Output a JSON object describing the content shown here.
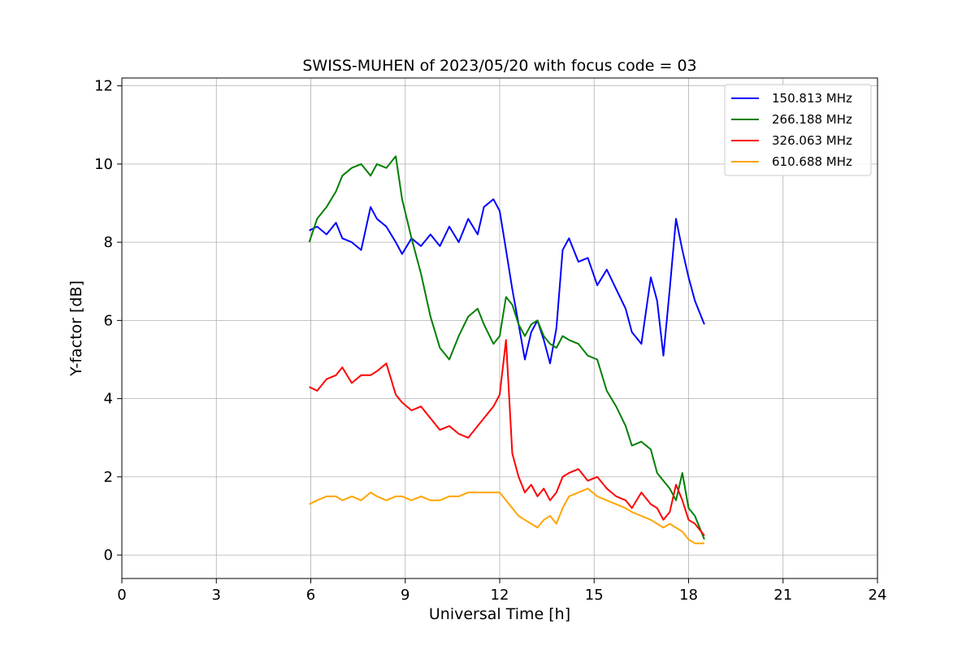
{
  "chart_data": {
    "type": "line",
    "title": "SWISS-MUHEN of 2023/05/20 with focus code = 03",
    "xlabel": "Universal Time [h]",
    "ylabel": "Y-factor [dB]",
    "xlim": [
      0,
      24
    ],
    "ylim": [
      -0.6,
      12.2
    ],
    "xticks": [
      0,
      3,
      6,
      9,
      12,
      15,
      18,
      21,
      24
    ],
    "yticks": [
      0,
      2,
      4,
      6,
      8,
      10,
      12
    ],
    "grid": true,
    "legend_position": "top-right",
    "series": [
      {
        "name": "150.813 MHz",
        "color": "#0000ff",
        "x": [
          5.95,
          6.2,
          6.5,
          6.8,
          7.0,
          7.3,
          7.6,
          7.9,
          8.1,
          8.4,
          8.7,
          8.9,
          9.2,
          9.5,
          9.8,
          10.1,
          10.4,
          10.7,
          11.0,
          11.3,
          11.5,
          11.8,
          12.0,
          12.2,
          12.4,
          12.6,
          12.8,
          13.0,
          13.2,
          13.4,
          13.6,
          13.8,
          14.0,
          14.2,
          14.5,
          14.8,
          15.1,
          15.4,
          15.7,
          16.0,
          16.2,
          16.5,
          16.8,
          17.0,
          17.2,
          17.4,
          17.6,
          17.8,
          18.0,
          18.2,
          18.5
        ],
        "y": [
          8.3,
          8.4,
          8.2,
          8.5,
          8.1,
          8.0,
          7.8,
          8.9,
          8.6,
          8.4,
          8.0,
          7.7,
          8.1,
          7.9,
          8.2,
          7.9,
          8.4,
          8.0,
          8.6,
          8.2,
          8.9,
          9.1,
          8.8,
          7.8,
          6.8,
          5.9,
          5.0,
          5.7,
          6.0,
          5.5,
          4.9,
          5.8,
          7.8,
          8.1,
          7.5,
          7.6,
          6.9,
          7.3,
          6.8,
          6.3,
          5.7,
          5.4,
          7.1,
          6.5,
          5.1,
          6.8,
          8.6,
          7.8,
          7.1,
          6.5,
          5.9
        ]
      },
      {
        "name": "266.188 MHz",
        "color": "#008000",
        "x": [
          5.95,
          6.2,
          6.5,
          6.8,
          7.0,
          7.3,
          7.6,
          7.9,
          8.1,
          8.4,
          8.7,
          8.9,
          9.2,
          9.5,
          9.8,
          10.1,
          10.4,
          10.7,
          11.0,
          11.3,
          11.5,
          11.8,
          12.0,
          12.2,
          12.4,
          12.6,
          12.8,
          13.0,
          13.2,
          13.4,
          13.6,
          13.8,
          14.0,
          14.2,
          14.5,
          14.8,
          15.1,
          15.4,
          15.7,
          16.0,
          16.2,
          16.5,
          16.8,
          17.0,
          17.2,
          17.4,
          17.6,
          17.8,
          18.0,
          18.2,
          18.5
        ],
        "y": [
          8.0,
          8.6,
          8.9,
          9.3,
          9.7,
          9.9,
          10.0,
          9.7,
          10.0,
          9.9,
          10.2,
          9.1,
          8.1,
          7.2,
          6.1,
          5.3,
          5.0,
          5.6,
          6.1,
          6.3,
          5.9,
          5.4,
          5.6,
          6.6,
          6.4,
          5.9,
          5.6,
          5.9,
          6.0,
          5.6,
          5.4,
          5.3,
          5.6,
          5.5,
          5.4,
          5.1,
          5.0,
          4.2,
          3.8,
          3.3,
          2.8,
          2.9,
          2.7,
          2.1,
          1.9,
          1.7,
          1.4,
          2.1,
          1.2,
          1.0,
          0.4
        ]
      },
      {
        "name": "326.063 MHz",
        "color": "#ff0000",
        "x": [
          5.95,
          6.2,
          6.5,
          6.8,
          7.0,
          7.3,
          7.6,
          7.9,
          8.1,
          8.4,
          8.7,
          8.9,
          9.2,
          9.5,
          9.8,
          10.1,
          10.4,
          10.7,
          11.0,
          11.3,
          11.5,
          11.8,
          12.0,
          12.2,
          12.4,
          12.6,
          12.8,
          13.0,
          13.2,
          13.4,
          13.6,
          13.8,
          14.0,
          14.2,
          14.5,
          14.8,
          15.1,
          15.4,
          15.7,
          16.0,
          16.2,
          16.5,
          16.8,
          17.0,
          17.2,
          17.4,
          17.6,
          17.8,
          18.0,
          18.2,
          18.5
        ],
        "y": [
          4.3,
          4.2,
          4.5,
          4.6,
          4.8,
          4.4,
          4.6,
          4.6,
          4.7,
          4.9,
          4.1,
          3.9,
          3.7,
          3.8,
          3.5,
          3.2,
          3.3,
          3.1,
          3.0,
          3.3,
          3.5,
          3.8,
          4.1,
          5.5,
          2.6,
          2.0,
          1.6,
          1.8,
          1.5,
          1.7,
          1.4,
          1.6,
          2.0,
          2.1,
          2.2,
          1.9,
          2.0,
          1.7,
          1.5,
          1.4,
          1.2,
          1.6,
          1.3,
          1.2,
          0.9,
          1.1,
          1.8,
          1.4,
          0.9,
          0.8,
          0.5
        ]
      },
      {
        "name": "610.688 MHz",
        "color": "#ffa500",
        "x": [
          5.95,
          6.2,
          6.5,
          6.8,
          7.0,
          7.3,
          7.6,
          7.9,
          8.1,
          8.4,
          8.7,
          8.9,
          9.2,
          9.5,
          9.8,
          10.1,
          10.4,
          10.7,
          11.0,
          11.3,
          11.5,
          11.8,
          12.0,
          12.2,
          12.4,
          12.6,
          12.8,
          13.0,
          13.2,
          13.4,
          13.6,
          13.8,
          14.0,
          14.2,
          14.5,
          14.8,
          15.1,
          15.4,
          15.7,
          16.0,
          16.2,
          16.5,
          16.8,
          17.0,
          17.2,
          17.4,
          17.6,
          17.8,
          18.0,
          18.2,
          18.5
        ],
        "y": [
          1.3,
          1.4,
          1.5,
          1.5,
          1.4,
          1.5,
          1.4,
          1.6,
          1.5,
          1.4,
          1.5,
          1.5,
          1.4,
          1.5,
          1.4,
          1.4,
          1.5,
          1.5,
          1.6,
          1.6,
          1.6,
          1.6,
          1.6,
          1.4,
          1.2,
          1.0,
          0.9,
          0.8,
          0.7,
          0.9,
          1.0,
          0.8,
          1.2,
          1.5,
          1.6,
          1.7,
          1.5,
          1.4,
          1.3,
          1.2,
          1.1,
          1.0,
          0.9,
          0.8,
          0.7,
          0.8,
          0.7,
          0.6,
          0.4,
          0.3,
          0.3
        ]
      }
    ]
  }
}
